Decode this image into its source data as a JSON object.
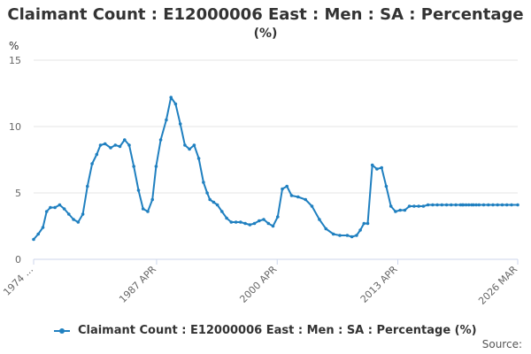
{
  "chart_data": {
    "type": "line",
    "title": "Claimant Count : E12000006 East : Men : SA : Percentage",
    "subtitle": "(%)",
    "ylabel": "%",
    "ylim": [
      0,
      15
    ],
    "yticks": [
      "0",
      "5",
      "10",
      "15"
    ],
    "xlim": [
      1974.0,
      2026.17
    ],
    "xtick_positions": [
      1974.0,
      1987.25,
      2000.25,
      2013.25,
      2026.17
    ],
    "xtick_labels": [
      "1974 ...",
      "1987 APR",
      "2000 APR",
      "2013 APR",
      "2026 MAR"
    ],
    "grid": true,
    "legend_position": "bottom",
    "series": [
      {
        "name": "Claimant Count : E12000006 East : Men : SA : Percentage (%)",
        "color": "#2080c0",
        "x": [
          1974.0,
          1974.5,
          1975.0,
          1975.4,
          1975.8,
          1976.3,
          1976.8,
          1977.3,
          1977.8,
          1978.3,
          1978.8,
          1979.3,
          1979.8,
          1980.3,
          1980.8,
          1981.2,
          1981.7,
          1982.3,
          1982.8,
          1983.3,
          1983.8,
          1984.3,
          1984.8,
          1985.3,
          1985.8,
          1986.3,
          1986.8,
          1987.2,
          1987.7,
          1988.3,
          1988.8,
          1989.3,
          1989.8,
          1990.3,
          1990.8,
          1991.3,
          1991.8,
          1992.3,
          1992.7,
          1993.0,
          1993.4,
          1993.8,
          1994.3,
          1994.8,
          1995.3,
          1995.8,
          1996.3,
          1996.8,
          1997.3,
          1997.8,
          1998.3,
          1998.8,
          1999.3,
          1999.8,
          2000.3,
          2000.8,
          2001.3,
          2001.8,
          2002.5,
          2003.3,
          2004.0,
          2004.8,
          2005.5,
          2006.3,
          2007.0,
          2007.8,
          2008.3,
          2008.8,
          2009.2,
          2009.6,
          2010.0,
          2010.5,
          2011.0,
          2011.5,
          2012.0,
          2012.5,
          2013.0,
          2013.5,
          2014.0,
          2014.5,
          2015.0,
          2015.5,
          2016.0,
          2016.5,
          2017.0,
          2017.5,
          2018.0,
          2018.5,
          2019.0,
          2019.5,
          2020.0,
          2020.2,
          2020.3,
          2020.6,
          2020.9,
          2021.2,
          2021.4,
          2021.7,
          2022.0,
          2022.5,
          2023.0,
          2023.5,
          2024.0,
          2024.5,
          2025.0,
          2025.5,
          2026.17
        ],
        "values": [
          1.5,
          1.9,
          2.4,
          3.6,
          3.9,
          3.9,
          4.1,
          3.8,
          3.4,
          3.0,
          2.8,
          3.4,
          5.5,
          7.2,
          7.9,
          8.6,
          8.7,
          8.4,
          8.6,
          8.5,
          9.0,
          8.6,
          7.0,
          5.2,
          3.8,
          3.6,
          4.5,
          7.0,
          9.0,
          10.5,
          12.2,
          11.7,
          10.2,
          8.6,
          8.3,
          8.6,
          7.6,
          5.8,
          5.0,
          4.5,
          4.3,
          4.1,
          3.6,
          3.1,
          2.8,
          2.8,
          2.8,
          2.7,
          2.6,
          2.7,
          2.9,
          3.0,
          2.7,
          2.5,
          3.2,
          5.3,
          5.5,
          4.8,
          4.7,
          4.5,
          4.0,
          3.0,
          2.3,
          1.9,
          1.8,
          1.8,
          1.7,
          1.8,
          2.2,
          2.7,
          2.7,
          7.1,
          6.8,
          6.9,
          5.5,
          4.0,
          3.6,
          3.7,
          3.7,
          4.0,
          4.0,
          4.0,
          4.0,
          4.1,
          4.1,
          4.1,
          4.1,
          4.1,
          4.1,
          4.1,
          4.1,
          4.1,
          4.1,
          4.1,
          4.1,
          4.1,
          4.1,
          4.1,
          4.1,
          4.1,
          4.1,
          4.1,
          4.1,
          4.1,
          4.1,
          4.1,
          4.1
        ]
      }
    ]
  },
  "legend_label": "Claimant Count : E12000006 East : Men : SA : Percentage (%)",
  "source_label": "Source:"
}
